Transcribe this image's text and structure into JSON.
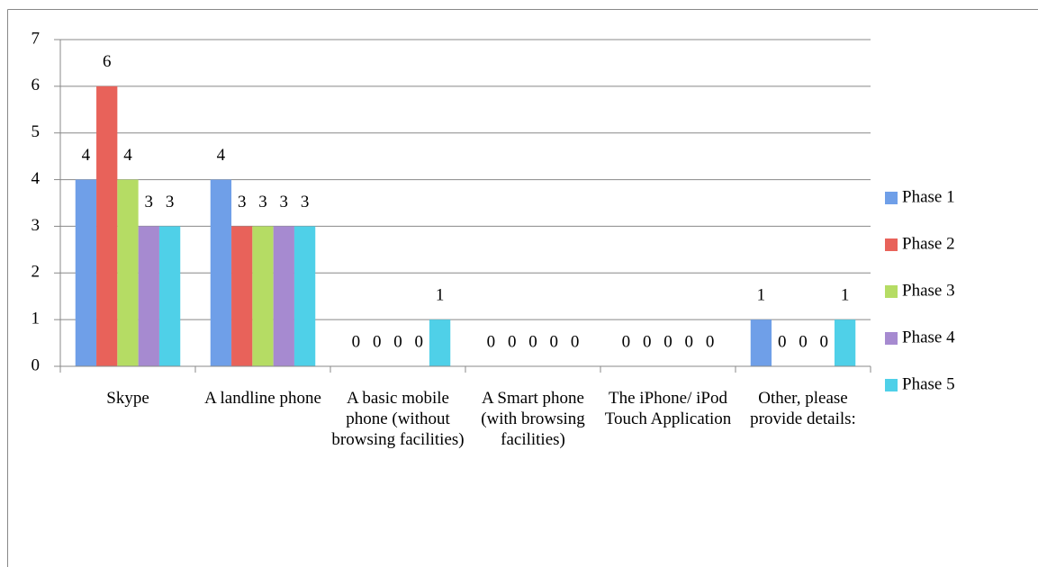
{
  "chart_data": {
    "type": "bar",
    "categories": [
      "Skype",
      "A landline phone",
      "A basic mobile phone (without browsing facilities)",
      "A Smart phone (with browsing facilities)",
      "The iPhone/ iPod Touch Application",
      "Other, please provide details:"
    ],
    "series": [
      {
        "name": "Phase 1",
        "color": "#6f9fe8",
        "values": [
          4,
          4,
          0,
          0,
          0,
          1
        ]
      },
      {
        "name": "Phase 2",
        "color": "#e8625a",
        "values": [
          6,
          3,
          0,
          0,
          0,
          0
        ]
      },
      {
        "name": "Phase 3",
        "color": "#b5dc64",
        "values": [
          4,
          3,
          0,
          0,
          0,
          0
        ]
      },
      {
        "name": "Phase 4",
        "color": "#a68ad0",
        "values": [
          3,
          3,
          0,
          0,
          0,
          0
        ]
      },
      {
        "name": "Phase 5",
        "color": "#4fd0e8",
        "values": [
          3,
          3,
          1,
          0,
          0,
          1
        ]
      }
    ],
    "ylim": [
      0,
      7
    ],
    "yticks": [
      0,
      1,
      2,
      3,
      4,
      5,
      6,
      7
    ],
    "grid": true,
    "legend": "right",
    "data_labels": true
  }
}
